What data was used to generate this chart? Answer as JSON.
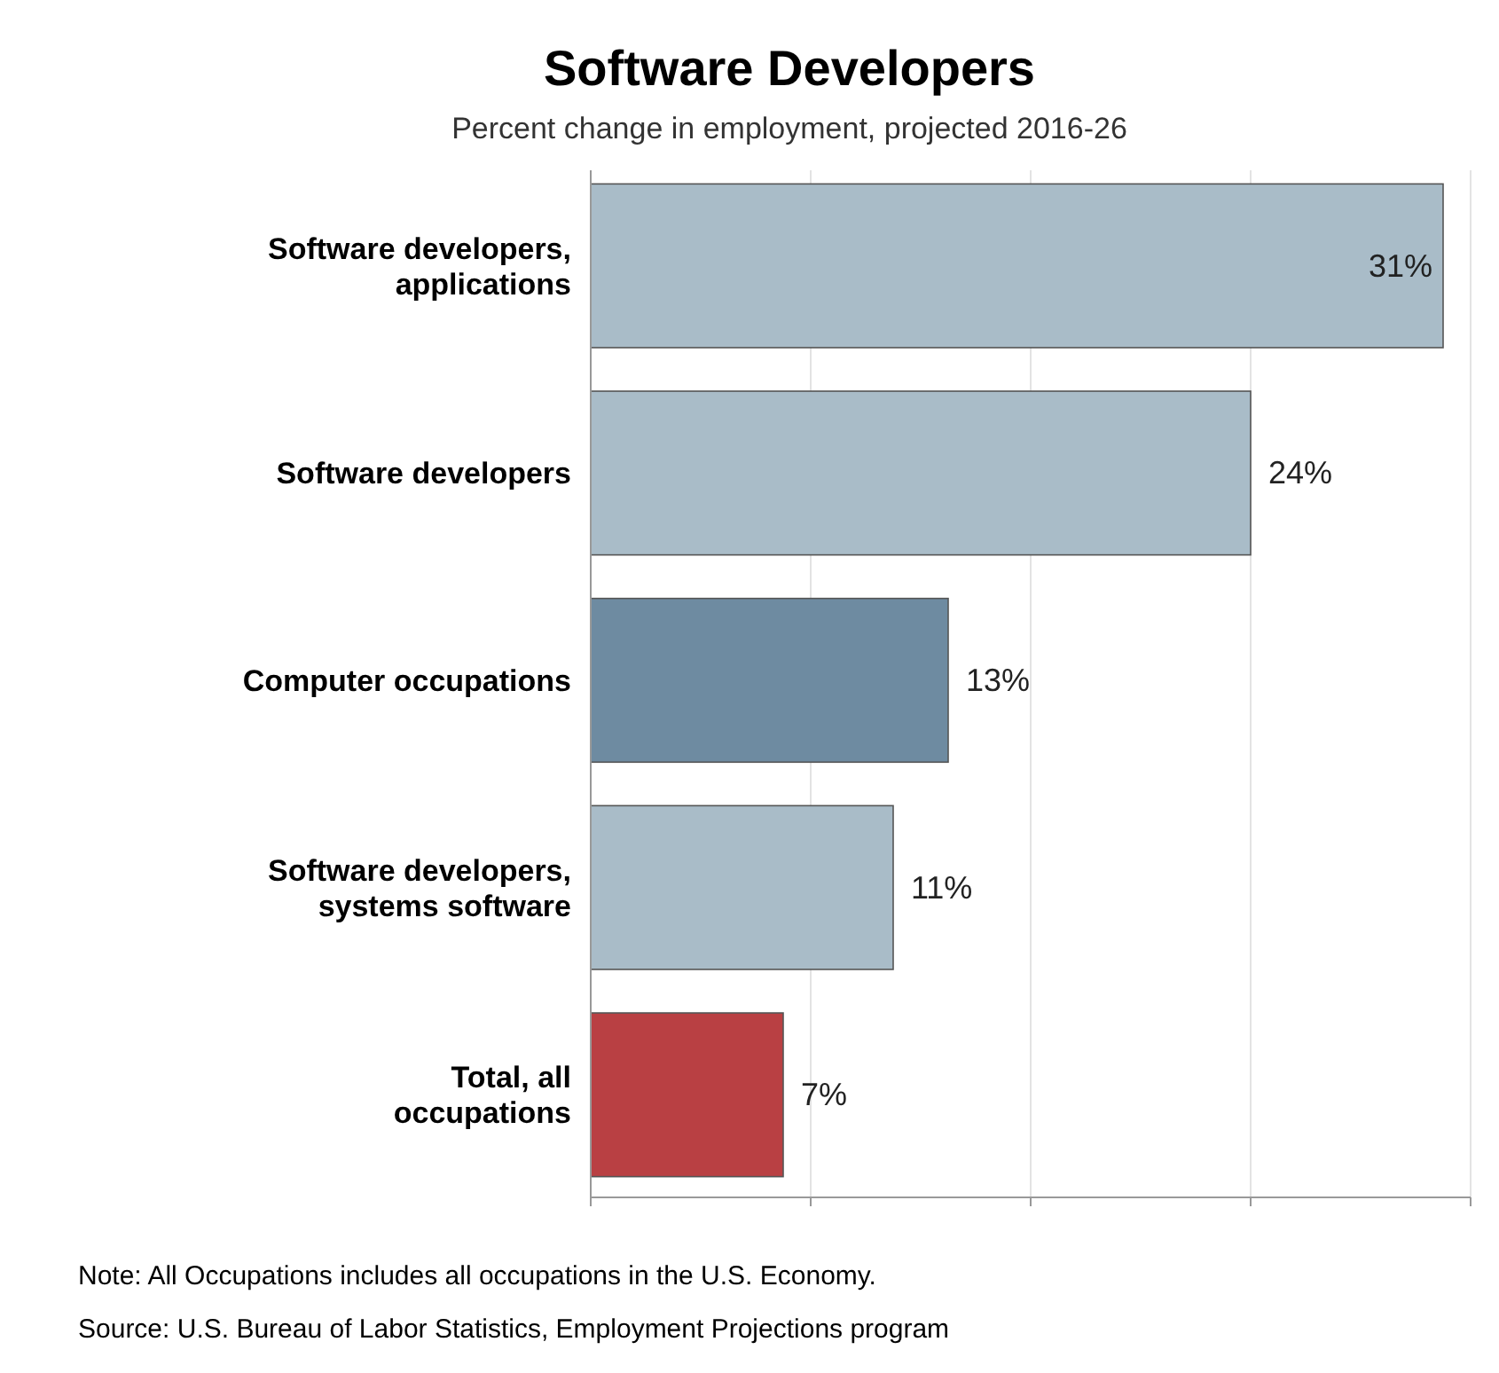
{
  "chart_data": {
    "type": "bar",
    "orientation": "horizontal",
    "title": "Software Developers",
    "subtitle": "Percent change in employment, projected 2016-26",
    "categories": [
      "Software developers, applications",
      "Software developers",
      "Computer occupations",
      "Software developers, systems software",
      "Total, all occupations"
    ],
    "values": [
      31,
      24,
      13,
      11,
      7
    ],
    "colors": [
      "#a9bcc8",
      "#a9bcc8",
      "#6e8ba1",
      "#a9bcc8",
      "#b94043"
    ],
    "xlim": [
      0,
      32
    ],
    "xticks": [
      {
        "value": 0,
        "label": null
      },
      {
        "value": 8,
        "label": null
      },
      {
        "value": 16,
        "label": null
      },
      {
        "value": 24,
        "label": null
      },
      {
        "value": 32,
        "label": null
      }
    ],
    "tick_labels": "y",
    "grid": "x",
    "data_labels": true,
    "value_labels": [
      "31%",
      "24%",
      "13%",
      "11%",
      "7%"
    ],
    "annotations": [
      "Note: All Occupations includes all occupations in the U.S. Economy.",
      "Source: U.S. Bureau of Labor Statistics, Employment Projections program"
    ]
  }
}
